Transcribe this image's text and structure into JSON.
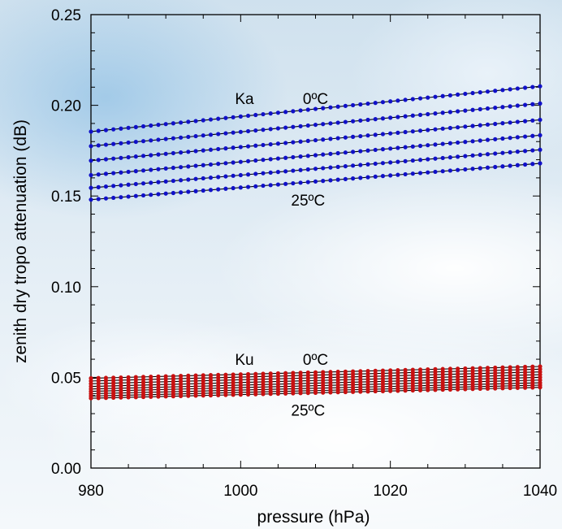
{
  "chart_data": {
    "type": "scatter",
    "title": "",
    "xlabel": "pressure (hPa)",
    "ylabel": "zenith dry tropo attenuation (dB)",
    "xlim": [
      980,
      1040
    ],
    "ylim": [
      0.0,
      0.25
    ],
    "xticks": [
      "980",
      "1000",
      "1020",
      "1040"
    ],
    "yticks": [
      "0.00",
      "0.05",
      "0.10",
      "0.15",
      "0.20",
      "0.25"
    ],
    "grid": false,
    "legend": "none",
    "x_start": 980,
    "x_end": 1040,
    "series": [
      {
        "group": "Ka",
        "color": "#1010c8",
        "values": [
          [
            980,
            0.1855
          ],
          [
            1040,
            0.2105
          ]
        ]
      },
      {
        "group": "Ka",
        "color": "#1010c8",
        "values": [
          [
            980,
            0.1775
          ],
          [
            1040,
            0.201
          ]
        ]
      },
      {
        "group": "Ka",
        "color": "#1010c8",
        "values": [
          [
            980,
            0.1695
          ],
          [
            1040,
            0.192
          ]
        ]
      },
      {
        "group": "Ka",
        "color": "#1010c8",
        "values": [
          [
            980,
            0.1615
          ],
          [
            1040,
            0.1835
          ]
        ]
      },
      {
        "group": "Ka",
        "color": "#1010c8",
        "values": [
          [
            980,
            0.1545
          ],
          [
            1040,
            0.1755
          ]
        ]
      },
      {
        "group": "Ka",
        "color": "#1010c8",
        "values": [
          [
            980,
            0.148
          ],
          [
            1040,
            0.168
          ]
        ]
      },
      {
        "group": "Ku",
        "color": "#c81010",
        "values": [
          [
            980,
            0.0495
          ],
          [
            1040,
            0.056
          ]
        ]
      },
      {
        "group": "Ku",
        "color": "#c81010",
        "values": [
          [
            980,
            0.048
          ],
          [
            1040,
            0.0545
          ]
        ]
      },
      {
        "group": "Ku",
        "color": "#c81010",
        "values": [
          [
            980,
            0.0465
          ],
          [
            1040,
            0.053
          ]
        ]
      },
      {
        "group": "Ku",
        "color": "#c81010",
        "values": [
          [
            980,
            0.045
          ],
          [
            1040,
            0.0515
          ]
        ]
      },
      {
        "group": "Ku",
        "color": "#c81010",
        "values": [
          [
            980,
            0.0436
          ],
          [
            1040,
            0.05
          ]
        ]
      },
      {
        "group": "Ku",
        "color": "#c81010",
        "values": [
          [
            980,
            0.0423
          ],
          [
            1040,
            0.0485
          ]
        ]
      },
      {
        "group": "Ku",
        "color": "#c81010",
        "values": [
          [
            980,
            0.041
          ],
          [
            1040,
            0.047
          ]
        ]
      },
      {
        "group": "Ku",
        "color": "#c81010",
        "values": [
          [
            980,
            0.0397
          ],
          [
            1040,
            0.0457
          ]
        ]
      },
      {
        "group": "Ku",
        "color": "#c81010",
        "values": [
          [
            980,
            0.0385
          ],
          [
            1040,
            0.0445
          ]
        ]
      }
    ],
    "annotations": [
      {
        "text": "Ka",
        "x": 1000.5,
        "y": 0.2035
      },
      {
        "text": "0ºC",
        "x": 1010,
        "y": 0.2035
      },
      {
        "text": "25ºC",
        "x": 1009,
        "y": 0.1475
      },
      {
        "text": "Ku",
        "x": 1000.5,
        "y": 0.0595
      },
      {
        "text": "0ºC",
        "x": 1010,
        "y": 0.0595
      },
      {
        "text": "25ºC",
        "x": 1009,
        "y": 0.0315
      }
    ]
  }
}
